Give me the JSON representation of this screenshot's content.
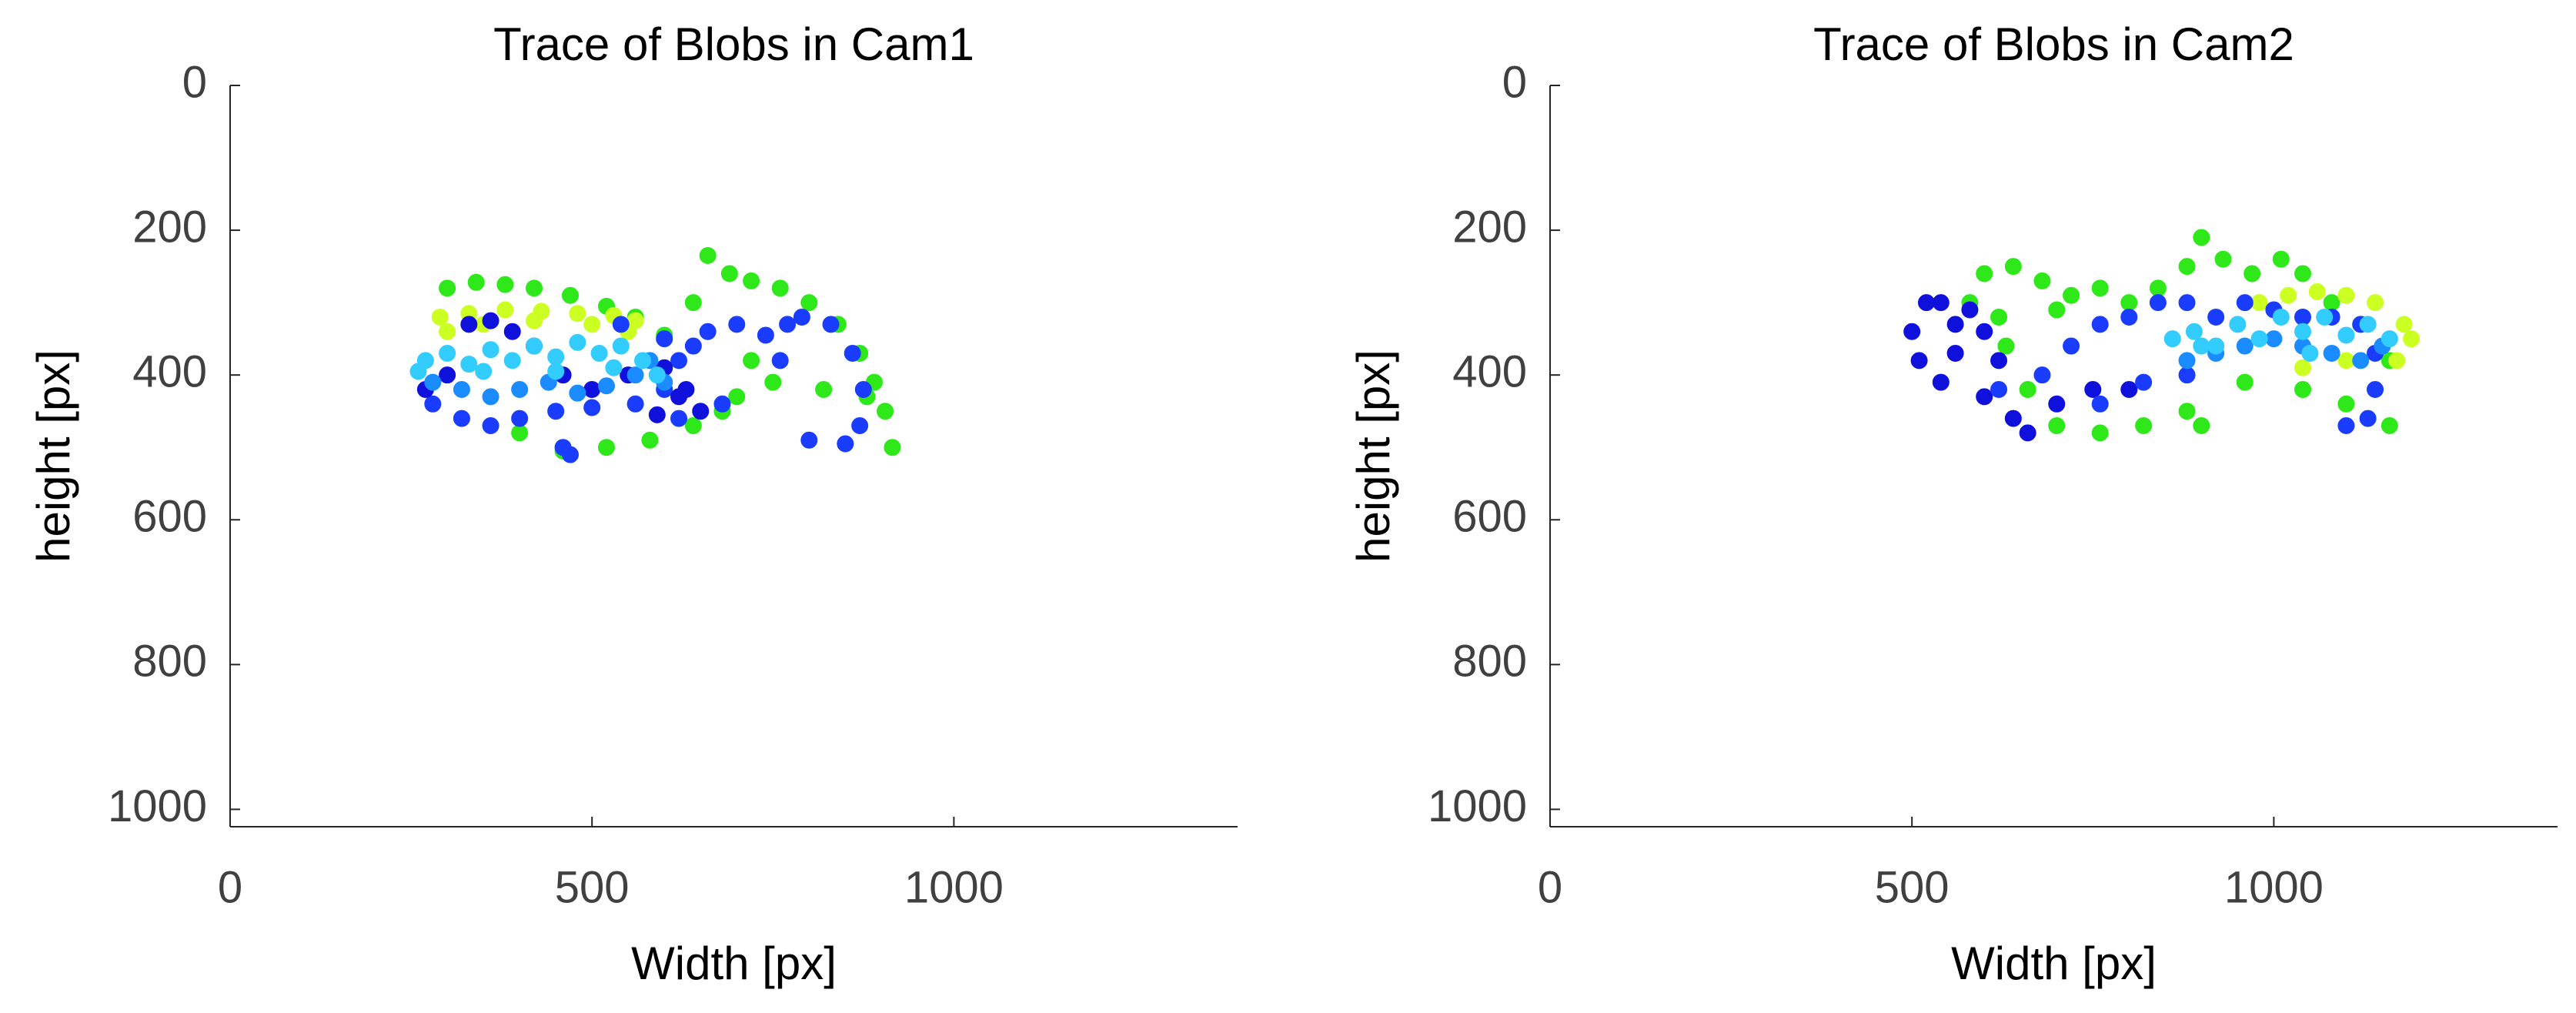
{
  "chart_data": [
    {
      "type": "scatter",
      "title": "Trace of Blobs in Cam1",
      "xlabel": "Width [px]",
      "ylabel": "height [px]",
      "xlim": [
        0,
        1392
      ],
      "ylim": [
        1024,
        0
      ],
      "xticks": [
        0,
        500,
        1000
      ],
      "yticks": [
        0,
        200,
        400,
        600,
        800,
        1000
      ],
      "series": [
        {
          "color": "#2ee81a",
          "x": [
            300,
            340,
            380,
            420,
            470,
            520,
            560,
            600,
            640,
            660,
            690,
            720,
            760,
            800,
            840,
            870,
            890,
            905,
            915,
            880,
            820,
            700,
            640,
            580,
            520,
            460,
            400,
            720,
            750,
            680
          ],
          "values": [
            280,
            272,
            275,
            280,
            290,
            305,
            320,
            345,
            300,
            235,
            260,
            270,
            280,
            300,
            330,
            370,
            410,
            450,
            500,
            430,
            420,
            430,
            470,
            490,
            500,
            505,
            480,
            380,
            410,
            450
          ]
        },
        {
          "color": "#ccff22",
          "x": [
            290,
            330,
            380,
            430,
            480,
            530,
            560,
            300,
            350,
            420,
            500,
            550
          ],
          "values": [
            320,
            315,
            310,
            312,
            315,
            318,
            325,
            340,
            330,
            325,
            330,
            340
          ]
        },
        {
          "color": "#1a3cff",
          "x": [
            280,
            320,
            360,
            400,
            450,
            500,
            560,
            600,
            620,
            640,
            660,
            700,
            740,
            760,
            770,
            790,
            830,
            860,
            875,
            870,
            850,
            800,
            680,
            620,
            460,
            470,
            540,
            600
          ],
          "values": [
            440,
            460,
            470,
            460,
            450,
            445,
            440,
            420,
            380,
            360,
            340,
            330,
            345,
            380,
            330,
            320,
            330,
            370,
            420,
            470,
            495,
            490,
            440,
            460,
            500,
            510,
            330,
            350
          ]
        },
        {
          "color": "#1010dd",
          "x": [
            330,
            360,
            390,
            420,
            460,
            500,
            550,
            600,
            630,
            650,
            620,
            590,
            270,
            300
          ],
          "values": [
            330,
            325,
            340,
            360,
            400,
            420,
            400,
            390,
            420,
            450,
            430,
            455,
            420,
            400
          ]
        },
        {
          "color": "#1a8cff",
          "x": [
            280,
            320,
            360,
            400,
            440,
            480,
            520,
            560,
            580,
            600
          ],
          "values": [
            410,
            420,
            430,
            420,
            410,
            425,
            415,
            400,
            380,
            410
          ]
        },
        {
          "color": "#33ccff",
          "x": [
            270,
            300,
            330,
            360,
            390,
            420,
            450,
            480,
            510,
            540,
            570,
            590,
            260,
            350,
            450,
            530
          ],
          "values": [
            380,
            370,
            385,
            365,
            380,
            360,
            375,
            355,
            370,
            360,
            380,
            400,
            395,
            395,
            395,
            390
          ]
        }
      ]
    },
    {
      "type": "scatter",
      "title": "Trace of Blobs in Cam2",
      "xlabel": "Width [px]",
      "ylabel": "height [px]",
      "xlim": [
        0,
        1392
      ],
      "ylim": [
        1024,
        0
      ],
      "xticks": [
        0,
        500,
        1000
      ],
      "yticks": [
        0,
        200,
        400,
        600,
        800,
        1000
      ],
      "series": [
        {
          "color": "#2ee81a",
          "x": [
            580,
            600,
            640,
            680,
            700,
            720,
            760,
            800,
            840,
            880,
            900,
            930,
            970,
            1010,
            1040,
            1080,
            1120,
            1160,
            1160,
            1100,
            1040,
            960,
            880,
            820,
            760,
            700,
            660,
            630,
            620,
            900
          ],
          "values": [
            300,
            260,
            250,
            270,
            310,
            290,
            280,
            300,
            280,
            250,
            210,
            240,
            260,
            240,
            260,
            300,
            330,
            380,
            470,
            440,
            420,
            410,
            450,
            470,
            480,
            470,
            420,
            360,
            320,
            470
          ]
        },
        {
          "color": "#ccff22",
          "x": [
            980,
            1020,
            1060,
            1100,
            1140,
            1180,
            1190,
            1170,
            1100,
            1040
          ],
          "values": [
            300,
            290,
            285,
            290,
            300,
            330,
            350,
            380,
            380,
            390
          ]
        },
        {
          "color": "#1010dd",
          "x": [
            520,
            500,
            510,
            540,
            560,
            560,
            540,
            580,
            600,
            620,
            600,
            640,
            660,
            700,
            750,
            800
          ],
          "values": [
            300,
            340,
            380,
            410,
            370,
            330,
            300,
            310,
            340,
            380,
            430,
            460,
            480,
            440,
            420,
            420
          ]
        },
        {
          "color": "#1a3cff",
          "x": [
            620,
            680,
            720,
            760,
            800,
            840,
            880,
            920,
            960,
            1000,
            1040,
            1080,
            1120,
            1140,
            1140,
            1130,
            1100,
            760,
            820,
            880
          ],
          "values": [
            420,
            400,
            360,
            330,
            320,
            300,
            300,
            320,
            300,
            310,
            320,
            320,
            330,
            370,
            420,
            460,
            470,
            440,
            410,
            400
          ]
        },
        {
          "color": "#1a8cff",
          "x": [
            880,
            920,
            960,
            1000,
            1040,
            1080,
            1120,
            1150
          ],
          "values": [
            380,
            370,
            360,
            350,
            360,
            370,
            380,
            360
          ]
        },
        {
          "color": "#33ccff",
          "x": [
            860,
            890,
            920,
            950,
            980,
            1010,
            1040,
            1070,
            1100,
            1130,
            1160,
            900,
            1050
          ],
          "values": [
            350,
            340,
            360,
            330,
            350,
            320,
            340,
            320,
            345,
            330,
            350,
            360,
            370
          ]
        }
      ]
    }
  ]
}
